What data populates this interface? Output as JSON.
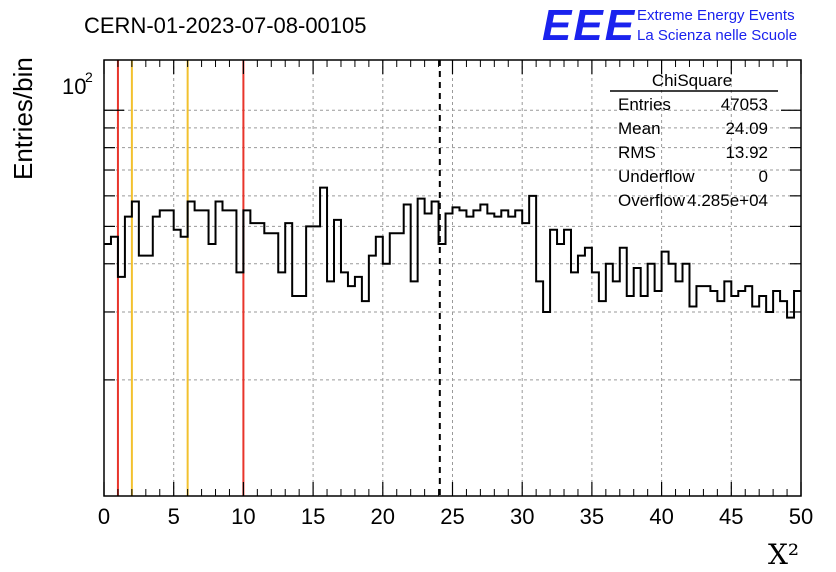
{
  "header": {
    "title": "CERN-01-2023-07-08-00105",
    "logo_text": "EEE",
    "logo_line1": "Extreme Energy Events",
    "logo_line2": "La Scienza nelle Scuole"
  },
  "stats_box": {
    "title": "ChiSquare",
    "rows": [
      {
        "label": "Entries",
        "value": "47053"
      },
      {
        "label": "Mean",
        "value": "24.09"
      },
      {
        "label": "RMS",
        "value": "13.92"
      },
      {
        "label": "Underflow",
        "value": "0"
      },
      {
        "label": "Overflow",
        "value": "4.285e+04"
      }
    ]
  },
  "chart_data": {
    "type": "histogram",
    "xlabel": "X²",
    "ylabel": "Entries/bin",
    "xlim": [
      0,
      50
    ],
    "ylim": [
      10,
      135
    ],
    "yscale": "log",
    "grid": true,
    "x_ticks": [
      "0",
      "5",
      "10",
      "15",
      "20",
      "25",
      "30",
      "35",
      "40",
      "45",
      "50"
    ],
    "y_tick_label": {
      "base": "10",
      "exp": "2",
      "value": 100
    },
    "bin_width": 0.5,
    "values": [
      45,
      47,
      37,
      53,
      58,
      42,
      42,
      53,
      55,
      55,
      49,
      47,
      58,
      55,
      55,
      45,
      58,
      55,
      55,
      38,
      55,
      51,
      51,
      48,
      48,
      38,
      51,
      33,
      33,
      50,
      50,
      63,
      36,
      52,
      38,
      35,
      37,
      32,
      42,
      47,
      40,
      48,
      48,
      57,
      36,
      59,
      54,
      58,
      45,
      54,
      56,
      55,
      53,
      55,
      57,
      54,
      53,
      55,
      53,
      55,
      51,
      60,
      36,
      30,
      49,
      45,
      49,
      38,
      42,
      44,
      38,
      32,
      40,
      36,
      44,
      33,
      39,
      33,
      40,
      34,
      43,
      40,
      36,
      40,
      31,
      35,
      35,
      34,
      32,
      36,
      33,
      34,
      35,
      31,
      33,
      30,
      34,
      32,
      29,
      34
    ],
    "vertical_lines": [
      {
        "x": 1,
        "color": "#e8352b",
        "style": "solid"
      },
      {
        "x": 2,
        "color": "#f2c12e",
        "style": "solid"
      },
      {
        "x": 6,
        "color": "#f2c12e",
        "style": "solid"
      },
      {
        "x": 10,
        "color": "#e8352b",
        "style": "solid"
      },
      {
        "x": 24.09,
        "color": "#000000",
        "style": "dashed"
      }
    ]
  }
}
